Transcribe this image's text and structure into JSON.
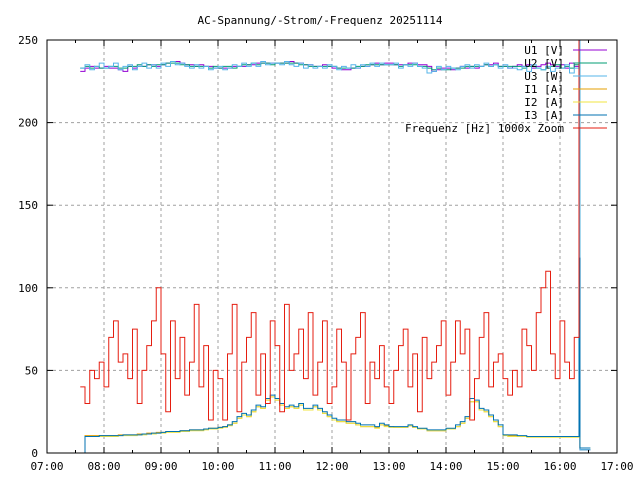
{
  "chart_data": {
    "type": "line",
    "title": "AC-Spannung/-Strom/-Frequenz 20251114",
    "xlabel": "",
    "ylabel": "",
    "xlim": [
      "07:00",
      "17:00"
    ],
    "ylim": [
      0,
      250
    ],
    "x_ticks": [
      "07:00",
      "08:00",
      "09:00",
      "10:00",
      "11:00",
      "12:00",
      "13:00",
      "14:00",
      "15:00",
      "16:00",
      "17:00"
    ],
    "y_ticks": [
      "0",
      "50",
      "100",
      "150",
      "200",
      "250"
    ],
    "grid": true,
    "legend_position": "top-right",
    "x": [
      "07:35",
      "07:40",
      "07:45",
      "07:50",
      "07:55",
      "08:00",
      "08:05",
      "08:10",
      "08:15",
      "08:20",
      "08:25",
      "08:30",
      "08:35",
      "08:40",
      "08:45",
      "08:50",
      "08:55",
      "09:00",
      "09:05",
      "09:10",
      "09:15",
      "09:20",
      "09:25",
      "09:30",
      "09:35",
      "09:40",
      "09:45",
      "09:50",
      "09:55",
      "10:00",
      "10:05",
      "10:10",
      "10:15",
      "10:20",
      "10:25",
      "10:30",
      "10:35",
      "10:40",
      "10:45",
      "10:50",
      "10:55",
      "11:00",
      "11:05",
      "11:10",
      "11:15",
      "11:20",
      "11:25",
      "11:30",
      "11:35",
      "11:40",
      "11:45",
      "11:50",
      "11:55",
      "12:00",
      "12:05",
      "12:10",
      "12:15",
      "12:20",
      "12:25",
      "12:30",
      "12:35",
      "12:40",
      "12:45",
      "12:50",
      "12:55",
      "13:00",
      "13:05",
      "13:10",
      "13:15",
      "13:20",
      "13:25",
      "13:30",
      "13:35",
      "13:40",
      "13:45",
      "13:50",
      "13:55",
      "14:00",
      "14:05",
      "14:10",
      "14:15",
      "14:20",
      "14:25",
      "14:30",
      "14:35",
      "14:40",
      "14:45",
      "14:50",
      "14:55",
      "15:00",
      "15:05",
      "15:10",
      "15:15",
      "15:20",
      "15:25",
      "15:30",
      "15:35",
      "15:40",
      "15:45",
      "15:50",
      "15:55",
      "16:00",
      "16:05",
      "16:10",
      "16:15",
      "16:20",
      "16:21",
      "16:32"
    ],
    "series": [
      {
        "name": "U1 [V]",
        "color": "#9400d3",
        "values": [
          231,
          233,
          234,
          233,
          233,
          234,
          233,
          233,
          232,
          231,
          234,
          233,
          234,
          234,
          235,
          235,
          234,
          235,
          236,
          237,
          237,
          236,
          235,
          235,
          234,
          235,
          234,
          234,
          233,
          233,
          233,
          233,
          234,
          234,
          234,
          235,
          235,
          236,
          236,
          236,
          236,
          236,
          236,
          236,
          237,
          236,
          236,
          235,
          235,
          234,
          234,
          235,
          234,
          233,
          233,
          232,
          232,
          233,
          233,
          234,
          234,
          235,
          236,
          235,
          236,
          236,
          235,
          235,
          235,
          236,
          236,
          235,
          235,
          234,
          231,
          232,
          233,
          233,
          232,
          233,
          234,
          233,
          234,
          233,
          234,
          235,
          235,
          236,
          234,
          234,
          233,
          234,
          235,
          234,
          235,
          233,
          234,
          235,
          236,
          235,
          234,
          235,
          233,
          236,
          234,
          235,
          2,
          2
        ]
      },
      {
        "name": "U2 [V]",
        "color": "#009e73",
        "values": [
          233,
          234,
          233,
          234,
          233,
          233,
          234,
          234,
          233,
          233,
          234,
          234,
          235,
          234,
          235,
          234,
          235,
          235,
          236,
          236,
          236,
          235,
          235,
          234,
          234,
          234,
          234,
          233,
          234,
          233,
          234,
          234,
          233,
          234,
          235,
          235,
          236,
          235,
          236,
          236,
          235,
          236,
          236,
          236,
          236,
          236,
          235,
          235,
          234,
          234,
          234,
          234,
          234,
          234,
          233,
          233,
          233,
          233,
          234,
          234,
          235,
          235,
          235,
          235,
          235,
          235,
          235,
          234,
          235,
          235,
          235,
          234,
          234,
          233,
          232,
          233,
          232,
          232,
          233,
          233,
          233,
          234,
          234,
          234,
          234,
          235,
          234,
          235,
          234,
          234,
          234,
          234,
          234,
          233,
          234,
          234,
          233,
          232,
          233,
          234,
          235,
          233,
          234,
          233,
          235,
          234,
          2,
          2
        ]
      },
      {
        "name": "U3 [W]",
        "color": "#56b4e9",
        "values": [
          233,
          235,
          232,
          234,
          236,
          233,
          234,
          236,
          232,
          234,
          235,
          232,
          234,
          236,
          233,
          235,
          233,
          236,
          234,
          237,
          235,
          236,
          234,
          233,
          235,
          233,
          234,
          232,
          233,
          234,
          232,
          233,
          235,
          234,
          236,
          234,
          236,
          234,
          237,
          235,
          236,
          236,
          235,
          237,
          235,
          234,
          236,
          233,
          235,
          233,
          234,
          233,
          235,
          234,
          232,
          234,
          233,
          235,
          233,
          235,
          234,
          236,
          234,
          236,
          235,
          235,
          236,
          233,
          235,
          234,
          236,
          234,
          233,
          230,
          231,
          234,
          232,
          234,
          233,
          232,
          234,
          235,
          233,
          235,
          234,
          236,
          234,
          235,
          233,
          235,
          233,
          233,
          232,
          234,
          231,
          235,
          233,
          232,
          234,
          231,
          233,
          233,
          235,
          230,
          233,
          250,
          2,
          2
        ]
      },
      {
        "name": "I1 [A]",
        "color": "#e69f00",
        "values": [
          0,
          10.5,
          10.5,
          10.5,
          10.5,
          10.5,
          10.5,
          10.5,
          11,
          11,
          11,
          11,
          11.5,
          11.5,
          12,
          12,
          12.5,
          12.5,
          13,
          13,
          13,
          13.5,
          13.5,
          14,
          14,
          14,
          14.5,
          15,
          15,
          15.5,
          16,
          17,
          18,
          21,
          23,
          22,
          25,
          28,
          27,
          32,
          34,
          32,
          29,
          27,
          28,
          27,
          29,
          26,
          26,
          28,
          26,
          24,
          22,
          20,
          19,
          19,
          18,
          18,
          17,
          16,
          16,
          16,
          15.5,
          17,
          16.5,
          16,
          15.5,
          15.5,
          15.5,
          16.5,
          15.5,
          14.5,
          14.5,
          13.5,
          13.5,
          13.5,
          13.5,
          14.5,
          14.5,
          16,
          18,
          21,
          31,
          31,
          26,
          25,
          22,
          19,
          16,
          11,
          10.5,
          10.5,
          10,
          10,
          10,
          10,
          10,
          10,
          10,
          10,
          10,
          10,
          10,
          10,
          10,
          10,
          3,
          3
        ]
      },
      {
        "name": "I2 [A]",
        "color": "#f0e442",
        "values": [
          0,
          10,
          10,
          10,
          10,
          10,
          10,
          10,
          10.5,
          10.5,
          10.5,
          10.5,
          11,
          11,
          11.5,
          11.5,
          12,
          12,
          12.5,
          12.5,
          12.5,
          13,
          13,
          13.5,
          13.5,
          13.5,
          14,
          14.5,
          14.5,
          15,
          15.5,
          16.5,
          18,
          21,
          23,
          22,
          25,
          28,
          27,
          32,
          34,
          32,
          29,
          27,
          28,
          27,
          29,
          26,
          26,
          28,
          26,
          24,
          22,
          20,
          19,
          19,
          18,
          18,
          17,
          16,
          16,
          16,
          15,
          17,
          16,
          15.5,
          15.5,
          15.5,
          15.5,
          16.5,
          15.5,
          14.5,
          14.5,
          13.5,
          13.5,
          13.5,
          13.5,
          14.5,
          14.5,
          16,
          18,
          21,
          31,
          31,
          26,
          25,
          22,
          19,
          16,
          10.5,
          10,
          10,
          10,
          10,
          9.5,
          9.5,
          9.5,
          9.5,
          9.5,
          9.5,
          9.5,
          9.5,
          9.5,
          9.5,
          9.5,
          9.5,
          3,
          3
        ]
      },
      {
        "name": "I3 [A]",
        "color": "#0072b2",
        "values": [
          0,
          10,
          10,
          10,
          10.5,
          10.5,
          10.5,
          10.5,
          10.5,
          11,
          11,
          11,
          11,
          11.5,
          11.5,
          12,
          12,
          12.5,
          13,
          13,
          13,
          13.5,
          13.5,
          14,
          14,
          14,
          14.5,
          15,
          15,
          15.5,
          16,
          17,
          19,
          22,
          24,
          23,
          26,
          29,
          28,
          33,
          35,
          33,
          30,
          28,
          29,
          28,
          30,
          27,
          27,
          29,
          27,
          25,
          23,
          21,
          20,
          20,
          19,
          19,
          18,
          17,
          17,
          17,
          16,
          18,
          17,
          16,
          16,
          16,
          16,
          17,
          16,
          15,
          15,
          14,
          14,
          14,
          14,
          15,
          15,
          17,
          19,
          22,
          33,
          32,
          27,
          26,
          23,
          20,
          17,
          11,
          11,
          11,
          10.5,
          10.5,
          10,
          10,
          10,
          10,
          10,
          10,
          10,
          10,
          10,
          10,
          10,
          118,
          3,
          3
        ]
      },
      {
        "name": "Frequenz [Hz] 1000x Zoom",
        "color": "#e51e10",
        "values": [
          40,
          30,
          50,
          45,
          55,
          40,
          70,
          80,
          55,
          60,
          45,
          75,
          30,
          50,
          65,
          80,
          100,
          60,
          25,
          80,
          45,
          70,
          35,
          55,
          90,
          40,
          65,
          20,
          50,
          45,
          20,
          60,
          90,
          25,
          55,
          70,
          85,
          35,
          60,
          30,
          80,
          65,
          25,
          90,
          50,
          60,
          75,
          45,
          85,
          35,
          55,
          80,
          30,
          40,
          75,
          55,
          20,
          60,
          70,
          85,
          30,
          55,
          45,
          65,
          40,
          30,
          50,
          65,
          75,
          40,
          60,
          25,
          70,
          45,
          55,
          65,
          80,
          35,
          55,
          80,
          60,
          75,
          20,
          45,
          70,
          85,
          40,
          55,
          60,
          45,
          35,
          50,
          40,
          75,
          65,
          50,
          85,
          100,
          110,
          60,
          45,
          80,
          55,
          45,
          70,
          250,
          null,
          null
        ]
      }
    ]
  }
}
